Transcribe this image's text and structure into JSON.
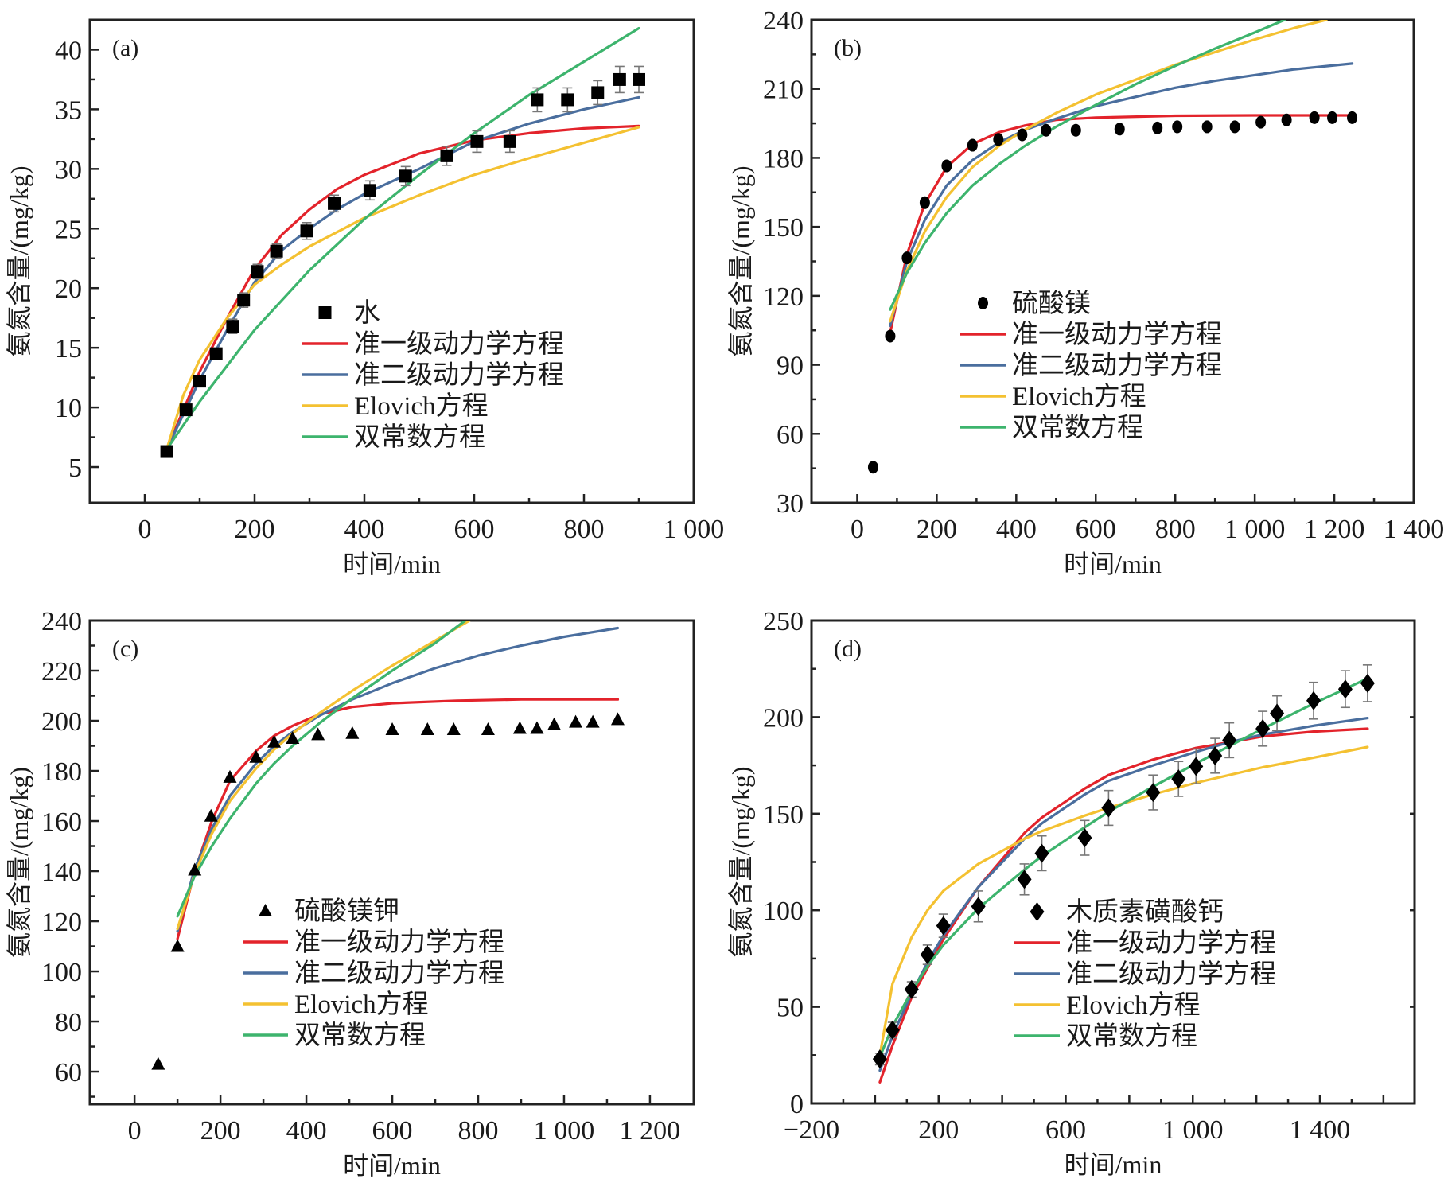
{
  "figure": {
    "y_axis_title": "氨氮含量/(mg/kg)",
    "x_axis_title": "时间/min",
    "fit_legend": [
      "准一级动力学方程",
      "准二级动力学方程",
      "Elovich方程",
      "双常数方程"
    ],
    "fit_colors": {
      "pfo": "#e3232b",
      "pso": "#4a6e9e",
      "elovich": "#f4c131",
      "two_constant": "#3db46d"
    },
    "marker_color": "#000000",
    "errorbar_color": "#777777"
  },
  "chart_data": [
    {
      "type": "scatter",
      "panel": "(a)",
      "title": "",
      "xlabel": "时间/min",
      "ylabel": "氨氮含量/(mg/kg)",
      "xlim": [
        -100,
        1000
      ],
      "ylim": [
        2,
        42.5
      ],
      "xticks": [
        0,
        200,
        400,
        600,
        800,
        1000
      ],
      "xtick_labels": [
        "0",
        "200",
        "400",
        "600",
        "800",
        "1 000"
      ],
      "xminor": [
        100,
        300,
        500,
        700,
        900
      ],
      "yticks": [
        5,
        10,
        15,
        20,
        25,
        30,
        35,
        40
      ],
      "ytick_labels": [
        "5",
        "10",
        "15",
        "20",
        "25",
        "30",
        "35",
        "40"
      ],
      "yminor": [
        7.5,
        12.5,
        17.5,
        22.5,
        27.5,
        32.5,
        37.5
      ],
      "legend_position": "lower-right",
      "marker": "square",
      "data_series": {
        "name": "水",
        "x": [
          40,
          75,
          100,
          130,
          160,
          180,
          205,
          240,
          295,
          345,
          410,
          475,
          550,
          605,
          665,
          715,
          770,
          825,
          865,
          900
        ],
        "y": [
          6.3,
          9.8,
          12.2,
          14.5,
          16.8,
          19.0,
          21.4,
          23.1,
          24.8,
          27.1,
          28.2,
          29.4,
          31.1,
          32.3,
          32.3,
          35.8,
          35.8,
          36.4,
          37.5,
          37.5
        ],
        "err": [
          0.3,
          0.3,
          0.4,
          0.4,
          0.6,
          0.6,
          0.6,
          0.6,
          0.7,
          0.7,
          0.8,
          0.8,
          0.8,
          0.9,
          0.9,
          1.0,
          1.0,
          1.0,
          1.1,
          1.1
        ]
      },
      "fits": [
        {
          "name": "准一级动力学方程",
          "key": "pfo",
          "x": [
            40,
            100,
            150,
            200,
            250,
            300,
            350,
            400,
            500,
            600,
            700,
            800,
            900
          ],
          "y": [
            6.5,
            13,
            17.5,
            21.6,
            24.5,
            26.6,
            28.3,
            29.5,
            31.3,
            32.4,
            33.0,
            33.4,
            33.6
          ]
        },
        {
          "name": "准二级动力学方程",
          "key": "pso",
          "x": [
            40,
            100,
            150,
            200,
            250,
            300,
            350,
            400,
            500,
            600,
            700,
            800,
            900
          ],
          "y": [
            6.5,
            12.3,
            16.5,
            20.5,
            23.2,
            25.0,
            26.6,
            27.9,
            30.0,
            32.3,
            33.8,
            35.0,
            36.0
          ]
        },
        {
          "name": "Elovich方程",
          "key": "elovich",
          "x": [
            40,
            70,
            100,
            150,
            200,
            250,
            300,
            400,
            500,
            600,
            700,
            800,
            900
          ],
          "y": [
            6.5,
            11,
            14,
            17.5,
            20.3,
            22.0,
            23.5,
            25.9,
            27.8,
            29.5,
            30.9,
            32.2,
            33.5
          ]
        },
        {
          "name": "双常数方程",
          "key": "two_constant",
          "x": [
            40,
            100,
            150,
            200,
            300,
            400,
            500,
            600,
            700,
            800,
            900
          ],
          "y": [
            6.5,
            10.5,
            13.5,
            16.5,
            21.5,
            25.8,
            29.5,
            33.0,
            36.2,
            39.0,
            41.8
          ]
        }
      ]
    },
    {
      "type": "scatter",
      "panel": "(b)",
      "title": "",
      "xlabel": "时间/min",
      "ylabel": "氨氮含量/(mg/kg)",
      "xlim": [
        -115,
        1400
      ],
      "ylim": [
        30,
        240
      ],
      "xticks": [
        0,
        200,
        400,
        600,
        800,
        1000,
        1200,
        1400
      ],
      "xtick_labels": [
        "0",
        "200",
        "400",
        "600",
        "800",
        "1 000",
        "1 200",
        "1 400"
      ],
      "xminor": [
        100,
        300,
        500,
        700,
        900,
        1100,
        1300
      ],
      "yticks": [
        30,
        60,
        90,
        120,
        150,
        180,
        210,
        240
      ],
      "ytick_labels": [
        "30",
        "60",
        "90",
        "120",
        "150",
        "180",
        "210",
        "240"
      ],
      "yminor": [
        45,
        75,
        105,
        135,
        165,
        195,
        225
      ],
      "legend_position": "lower-right",
      "marker": "circle",
      "data_series": {
        "name": "硫酸镁",
        "x": [
          40,
          83,
          125,
          170,
          225,
          290,
          355,
          415,
          475,
          550,
          660,
          755,
          805,
          880,
          950,
          1015,
          1080,
          1150,
          1195,
          1245
        ],
        "y": [
          45.5,
          102.5,
          136.5,
          160.5,
          176.5,
          185.5,
          188,
          190,
          192,
          192,
          192.5,
          193,
          193.5,
          193.5,
          193.5,
          195.5,
          196.5,
          197.5,
          197.5,
          197.5
        ],
        "err": []
      },
      "fits": [
        {
          "name": "准一级动力学方程",
          "key": "pfo",
          "x": [
            83,
            125,
            170,
            225,
            290,
            355,
            420,
            500,
            600,
            800,
            1000,
            1245
          ],
          "y": [
            104,
            138,
            160,
            176,
            186,
            191,
            194,
            196.5,
            197.5,
            198.3,
            198.5,
            198.5
          ]
        },
        {
          "name": "准二级动力学方程",
          "key": "pso",
          "x": [
            83,
            125,
            170,
            225,
            290,
            355,
            420,
            500,
            600,
            700,
            800,
            900,
            1000,
            1100,
            1245
          ],
          "y": [
            107,
            135,
            153,
            168,
            179,
            186.5,
            192,
            197,
            202.5,
            206.5,
            210.5,
            213.5,
            216,
            218.5,
            221
          ]
        },
        {
          "name": "Elovich方程",
          "key": "elovich",
          "x": [
            83,
            125,
            170,
            225,
            290,
            355,
            420,
            500,
            600,
            700,
            800,
            900,
            1000,
            1100,
            1180
          ],
          "y": [
            109,
            131,
            148,
            163,
            176,
            185,
            192,
            199.5,
            207.5,
            214,
            220.5,
            226,
            231.5,
            236.5,
            240
          ]
        },
        {
          "name": "双常数方程",
          "key": "two_constant",
          "x": [
            83,
            125,
            170,
            225,
            290,
            355,
            420,
            500,
            600,
            700,
            800,
            900,
            1000,
            1075
          ],
          "y": [
            114,
            130,
            143,
            156,
            168,
            177,
            185,
            193.5,
            203,
            212,
            220,
            227.5,
            234.5,
            240
          ]
        }
      ]
    },
    {
      "type": "scatter",
      "panel": "(c)",
      "title": "",
      "xlabel": "时间/min",
      "ylabel": "氨氮含量/(mg/kg)",
      "xlim": [
        -104,
        1302
      ],
      "ylim": [
        47,
        240
      ],
      "xticks": [
        0,
        200,
        400,
        600,
        800,
        1000,
        1200
      ],
      "xtick_labels": [
        "0",
        "200",
        "400",
        "600",
        "800",
        "1 000",
        "1 200"
      ],
      "xminor": [
        100,
        300,
        500,
        700,
        900,
        1100
      ],
      "yticks": [
        60,
        80,
        100,
        120,
        140,
        160,
        180,
        200,
        220,
        240
      ],
      "ytick_labels": [
        "60",
        "80",
        "100",
        "120",
        "140",
        "160",
        "180",
        "200",
        "220",
        "240"
      ],
      "yminor": [
        50,
        70,
        90,
        110,
        130,
        150,
        170,
        190,
        210,
        230
      ],
      "legend_position": "lower-right",
      "marker": "triangle",
      "data_series": {
        "name": "硫酸镁钾",
        "x": [
          55,
          100,
          140,
          178,
          222,
          283,
          325,
          368,
          427,
          507,
          600,
          682,
          743,
          823,
          897,
          937,
          977,
          1027,
          1067,
          1125
        ],
        "y": [
          63,
          110,
          140.5,
          162,
          177.5,
          185.5,
          191.5,
          193,
          194.5,
          195,
          196.5,
          196.5,
          196.5,
          196.5,
          197,
          197,
          198.5,
          199.5,
          199.5,
          200.5
        ],
        "err": []
      },
      "fits": [
        {
          "name": "准一级动力学方程",
          "key": "pfo",
          "x": [
            100,
            140,
            180,
            222,
            283,
            325,
            368,
            430,
            507,
            600,
            750,
            900,
            1125
          ],
          "y": [
            113,
            140,
            160,
            176,
            188,
            194,
            198,
            202.5,
            205.5,
            207,
            208,
            208.5,
            208.5
          ]
        },
        {
          "name": "准二级动力学方程",
          "key": "pso",
          "x": [
            100,
            140,
            180,
            222,
            283,
            325,
            368,
            430,
            507,
            600,
            700,
            800,
            900,
            1000,
            1125
          ],
          "y": [
            116,
            141,
            157,
            170,
            183,
            190,
            195.5,
            202,
            208.5,
            215,
            221,
            226,
            230,
            233.5,
            237
          ]
        },
        {
          "name": "Elovich方程",
          "key": "elovich",
          "x": [
            100,
            140,
            180,
            222,
            283,
            325,
            368,
            430,
            507,
            600,
            700,
            780
          ],
          "y": [
            117,
            139,
            155,
            168,
            181,
            188.5,
            195,
            203,
            212,
            222,
            232,
            240
          ]
        },
        {
          "name": "双常数方程",
          "key": "two_constant",
          "x": [
            100,
            140,
            180,
            222,
            283,
            325,
            368,
            430,
            507,
            600,
            700,
            770
          ],
          "y": [
            122,
            138,
            150,
            161,
            175,
            183,
            190,
            199,
            209,
            220,
            231,
            240
          ]
        }
      ]
    },
    {
      "type": "scatter",
      "panel": "(d)",
      "title": "",
      "xlabel": "时间/min",
      "ylabel": "氨氮含量/(mg/kg)",
      "xlim": [
        -200,
        1698
      ],
      "ylim": [
        0,
        250
      ],
      "xticks": [
        -200,
        200,
        600,
        1000,
        1400
      ],
      "xtick_labels": [
        "−200",
        "200",
        "600",
        "1 000",
        "1 400"
      ],
      "xminor": [
        -100,
        0,
        100,
        300,
        400,
        500,
        700,
        800,
        900,
        1100,
        1200,
        1300,
        1500,
        1600
      ],
      "xmajor_unlabeled": [
        0,
        400,
        800,
        1200,
        1600
      ],
      "yticks": [
        0,
        50,
        100,
        150,
        200,
        250
      ],
      "ytick_labels": [
        "0",
        "50",
        "100",
        "150",
        "200",
        "250"
      ],
      "yminor": [
        25,
        75,
        125,
        175,
        225
      ],
      "legend_position": "lower-right",
      "marker": "diamond",
      "data_series": {
        "name": "木质素磺酸钙",
        "x": [
          15,
          55,
          115,
          165,
          215,
          325,
          470,
          525,
          660,
          735,
          875,
          955,
          1010,
          1070,
          1115,
          1220,
          1265,
          1380,
          1480,
          1550
        ],
        "y": [
          23,
          38,
          59,
          77,
          92,
          102,
          116,
          129.5,
          137.5,
          153,
          161,
          168,
          174.5,
          180,
          188,
          194,
          202,
          208.5,
          214.5,
          217.5
        ],
        "err": [
          3,
          4,
          4,
          5,
          6,
          8,
          8,
          9,
          9,
          9,
          9,
          9,
          9,
          9,
          9,
          9,
          9,
          9.5,
          9.5,
          9.5
        ]
      },
      "fits": [
        {
          "name": "准一级动力学方程",
          "key": "pfo",
          "x": [
            15,
            55,
            115,
            165,
            215,
            325,
            470,
            525,
            660,
            735,
            875,
            1010,
            1115,
            1220,
            1380,
            1550
          ],
          "y": [
            11,
            30,
            55,
            70,
            85,
            112,
            140,
            148,
            163,
            170,
            178,
            184,
            187,
            190,
            192.5,
            194
          ]
        },
        {
          "name": "准二级动力学方程",
          "key": "pso",
          "x": [
            15,
            55,
            115,
            165,
            215,
            325,
            470,
            525,
            660,
            735,
            875,
            1010,
            1115,
            1220,
            1380,
            1550
          ],
          "y": [
            17,
            35,
            57,
            73,
            87,
            112,
            137,
            145,
            160,
            167,
            175,
            182,
            187,
            191,
            195.5,
            199.5
          ]
        },
        {
          "name": "Elovich方程",
          "key": "elovich",
          "x": [
            15,
            55,
            115,
            165,
            215,
            325,
            470,
            525,
            660,
            735,
            875,
            1010,
            1115,
            1220,
            1380,
            1550
          ],
          "y": [
            25,
            62,
            86,
            100,
            110,
            124,
            137,
            141,
            149,
            153,
            160,
            166,
            170,
            174,
            179,
            184.5
          ]
        },
        {
          "name": "双常数方程",
          "key": "two_constant",
          "x": [
            15,
            55,
            115,
            165,
            215,
            325,
            470,
            525,
            660,
            735,
            875,
            1010,
            1115,
            1220,
            1380,
            1550
          ],
          "y": [
            24,
            40,
            58,
            71,
            82,
            101,
            121,
            128,
            143,
            151,
            164,
            176,
            185,
            194,
            207,
            220
          ]
        }
      ]
    }
  ]
}
